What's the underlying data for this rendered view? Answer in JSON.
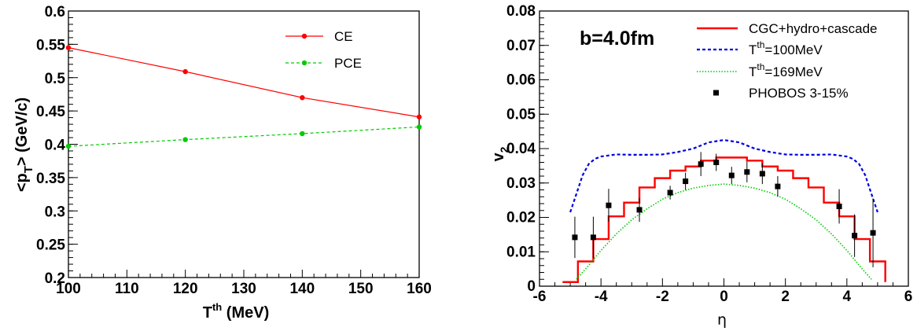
{
  "chart_data": [
    {
      "type": "line",
      "xlabel": "T",
      "xlabel_sup": "th",
      "xlabel_unit": " (MeV)",
      "ylabel": "<p",
      "ylabel_sub": "T",
      "ylabel_tail": "> (GeV/c)",
      "xlim": [
        100,
        160
      ],
      "ylim": [
        0.2,
        0.6
      ],
      "xticks": [
        "100",
        "110",
        "120",
        "130",
        "140",
        "150",
        "160"
      ],
      "yticks": [
        "0.2",
        "0.25",
        "0.3",
        "0.35",
        "0.4",
        "0.45",
        "0.5",
        "0.55",
        "0.6"
      ],
      "legend_position": "top-right",
      "grid": false,
      "series": [
        {
          "name": "CE",
          "color": "#ff0000",
          "dash": "solid",
          "x": [
            100,
            120,
            140,
            160
          ],
          "y": [
            0.545,
            0.509,
            0.47,
            0.441
          ]
        },
        {
          "name": "PCE",
          "color": "#00cc00",
          "dash": "dashed",
          "x": [
            100,
            120,
            140,
            160
          ],
          "y": [
            0.397,
            0.407,
            0.416,
            0.426
          ]
        }
      ]
    },
    {
      "type": "line",
      "xlabel": "η",
      "ylabel": "v",
      "ylabel_sub": "2",
      "annotation": "b=4.0fm",
      "xlim": [
        -6,
        6
      ],
      "ylim": [
        0,
        0.08
      ],
      "xticks": [
        "-6",
        "-4",
        "-2",
        "0",
        "2",
        "4",
        "6"
      ],
      "yticks": [
        "0",
        "0.01",
        "0.02",
        "0.03",
        "0.04",
        "0.05",
        "0.06",
        "0.07",
        "0.08"
      ],
      "legend_position": "top-right",
      "grid": false,
      "series": [
        {
          "name": "CGC+hydro+cascade",
          "color": "#ff0000",
          "style": "step",
          "x_edges": [
            -5.25,
            -4.75,
            -4.25,
            -3.75,
            -3.25,
            -2.75,
            -2.25,
            -1.75,
            -1.25,
            -0.75,
            -0.25,
            0.25,
            0.75,
            1.25,
            1.75,
            2.25,
            2.75,
            3.25,
            3.75,
            4.25,
            4.75,
            5.25
          ],
          "y": [
            0.0012,
            0.0072,
            0.0137,
            0.0203,
            0.0243,
            0.0287,
            0.0314,
            0.0336,
            0.0348,
            0.0365,
            0.0374,
            0.0374,
            0.0365,
            0.0348,
            0.0336,
            0.0314,
            0.0287,
            0.0243,
            0.0203,
            0.0137,
            0.0072,
            0.0012
          ]
        },
        {
          "name": "T",
          "name_sup": "th",
          "name_tail": "=100MeV",
          "color": "#0000dd",
          "style": "dashed",
          "x": [
            -5.0,
            -4.8,
            -4.6,
            -4.4,
            -4.2,
            -4.0,
            -3.5,
            -3.0,
            -2.5,
            -2.0,
            -1.5,
            -1.0,
            -0.5,
            0.0,
            0.5,
            1.0,
            1.5,
            2.0,
            2.5,
            3.0,
            3.5,
            4.0,
            4.2,
            4.4,
            4.6,
            4.8,
            5.0
          ],
          "y": [
            0.0215,
            0.0268,
            0.0322,
            0.0355,
            0.037,
            0.0377,
            0.0383,
            0.0382,
            0.0382,
            0.0383,
            0.039,
            0.04,
            0.0418,
            0.0425,
            0.0418,
            0.04,
            0.039,
            0.0383,
            0.0382,
            0.0382,
            0.0383,
            0.0377,
            0.037,
            0.0355,
            0.0322,
            0.0268,
            0.0215
          ]
        },
        {
          "name": "T",
          "name_sup": "th",
          "name_tail": "=169MeV",
          "color": "#00cc00",
          "style": "dotted",
          "x": [
            -4.8,
            -4.5,
            -4.0,
            -3.5,
            -3.0,
            -2.5,
            -2.0,
            -1.5,
            -1.0,
            -0.5,
            0.0,
            0.5,
            1.0,
            1.5,
            2.0,
            2.5,
            3.0,
            3.5,
            4.0,
            4.5,
            4.8
          ],
          "y": [
            0.002,
            0.005,
            0.0104,
            0.0152,
            0.0193,
            0.0225,
            0.0253,
            0.0272,
            0.0285,
            0.0293,
            0.0297,
            0.0293,
            0.0285,
            0.0272,
            0.0253,
            0.0225,
            0.0193,
            0.0152,
            0.0104,
            0.005,
            0.002
          ]
        },
        {
          "name": "PHOBOS 3-15%",
          "color": "#000000",
          "style": "points",
          "x": [
            -4.85,
            -4.25,
            -3.75,
            -2.75,
            -1.75,
            -1.25,
            -0.75,
            -0.25,
            0.25,
            0.75,
            1.25,
            1.75,
            3.75,
            4.25,
            4.85
          ],
          "y": [
            0.0142,
            0.0142,
            0.0235,
            0.0222,
            0.0272,
            0.0305,
            0.0355,
            0.036,
            0.0322,
            0.0332,
            0.0327,
            0.029,
            0.0232,
            0.0147,
            0.0155
          ],
          "err": [
            0.006,
            0.006,
            0.0048,
            0.0035,
            0.002,
            0.0025,
            0.0035,
            0.0025,
            0.0025,
            0.003,
            0.003,
            0.003,
            0.005,
            0.0062,
            0.01
          ]
        }
      ]
    }
  ]
}
